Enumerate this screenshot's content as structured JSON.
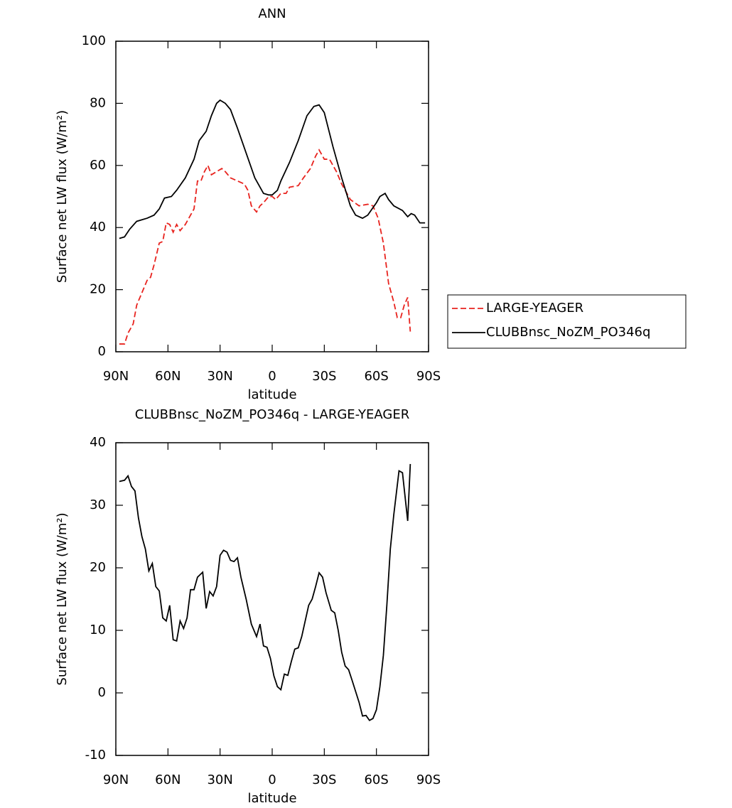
{
  "chart_data": [
    {
      "type": "line",
      "title": "ANN",
      "x_label": "latitude",
      "y_label": "Surface net LW flux (W/m²)",
      "xlim": [
        90,
        -90
      ],
      "xticks": [
        {
          "value": 90,
          "label": "90N"
        },
        {
          "value": 60,
          "label": "60N"
        },
        {
          "value": 30,
          "label": "30N"
        },
        0,
        {
          "value": -30,
          "label": "30S"
        },
        {
          "value": -60,
          "label": "60S"
        },
        {
          "value": -90,
          "label": "90S"
        }
      ],
      "ylim": [
        0,
        100
      ],
      "yticks": [
        0,
        20,
        40,
        60,
        80,
        100
      ],
      "legend": "right",
      "series": [
        {
          "name": "LARGE-YEAGER",
          "color": "#e8231e",
          "line_style": "dashed",
          "x": [
            88,
            85,
            83,
            80,
            78,
            75,
            72,
            70,
            68,
            65,
            63,
            61,
            59,
            57,
            55,
            53,
            50,
            47,
            45,
            43,
            41,
            39,
            37,
            35,
            32,
            29,
            27,
            24,
            20,
            16,
            14,
            12,
            9,
            7,
            5,
            2,
            0,
            -2,
            -5,
            -8,
            -10,
            -15,
            -18,
            -22,
            -25,
            -27,
            -30,
            -33,
            -37,
            -40,
            -45,
            -50,
            -55,
            -58,
            -61,
            -64,
            -67,
            -70,
            -72,
            -74,
            -76,
            -78,
            -79.5
          ],
          "values": [
            2.5,
            2.5,
            6,
            9,
            15,
            19,
            23,
            24,
            28,
            35,
            35.5,
            41.5,
            41,
            38.5,
            41,
            39,
            41,
            44,
            46,
            55,
            55,
            58,
            60,
            57,
            58,
            59,
            58,
            56,
            55,
            54,
            52,
            47,
            45,
            47,
            48,
            50,
            50,
            49,
            51,
            51,
            53,
            53.5,
            56,
            59,
            63,
            65,
            62,
            62,
            58,
            54,
            49,
            47,
            47.5,
            47,
            43,
            35,
            22,
            16,
            11,
            11,
            15,
            17.5,
            6.5
          ]
        },
        {
          "name": "CLUBBnsc_NoZM_PO346q",
          "color": "#000000",
          "line_style": "solid",
          "x": [
            88,
            85,
            82,
            78,
            75,
            72,
            68,
            65,
            62,
            58,
            55,
            50,
            45,
            42,
            38,
            35,
            32,
            30,
            27,
            24,
            20,
            15,
            10,
            5,
            2,
            0,
            -3,
            -5,
            -10,
            -15,
            -20,
            -24,
            -27,
            -30,
            -35,
            -40,
            -45,
            -48,
            -52,
            -55,
            -60,
            -62,
            -65,
            -67,
            -70,
            -75,
            -78,
            -80,
            -82,
            -85,
            -88
          ],
          "values": [
            36.5,
            37,
            39.5,
            42,
            42.5,
            43,
            44,
            46,
            49.5,
            50,
            52,
            56,
            62,
            68,
            71,
            76,
            80,
            81,
            80,
            78,
            72,
            64,
            56,
            51,
            50.5,
            50.5,
            52,
            55,
            61,
            68,
            76,
            79,
            79.5,
            77,
            66,
            56,
            47,
            44,
            43,
            44,
            48,
            50,
            51,
            49,
            47,
            45.5,
            43.5,
            44.5,
            44,
            41.5,
            41.5
          ]
        }
      ]
    },
    {
      "type": "line",
      "title": "CLUBBnsc_NoZM_PO346q - LARGE-YEAGER",
      "x_label": "latitude",
      "y_label": "Surface net LW flux (W/m²)",
      "xlim": [
        90,
        -90
      ],
      "xticks": [
        {
          "value": 90,
          "label": "90N"
        },
        {
          "value": 60,
          "label": "60N"
        },
        {
          "value": 30,
          "label": "30N"
        },
        0,
        {
          "value": -30,
          "label": "30S"
        },
        {
          "value": -60,
          "label": "60S"
        },
        {
          "value": -90,
          "label": "90S"
        }
      ],
      "ylim": [
        -10,
        40
      ],
      "yticks": [
        -10,
        0,
        10,
        20,
        30,
        40
      ],
      "series": [
        {
          "color": "#000000",
          "line_style": "solid",
          "x": [
            88,
            85,
            83,
            81,
            79,
            77,
            75,
            73,
            71,
            69,
            67,
            65,
            63,
            61,
            59,
            57,
            55,
            53,
            51,
            49,
            47,
            45,
            43,
            40,
            38,
            36,
            34,
            32,
            30,
            28,
            26,
            24,
            22,
            20,
            18,
            15,
            12,
            9,
            7,
            5,
            3,
            1,
            -1,
            -3,
            -5,
            -7,
            -9,
            -11,
            -13,
            -15,
            -17,
            -19,
            -21,
            -23,
            -25,
            -27,
            -29,
            -31,
            -34,
            -36,
            -38,
            -40,
            -42,
            -44,
            -46,
            -50,
            -52,
            -54,
            -56,
            -58,
            -60,
            -62,
            -64,
            -66,
            -68,
            -70,
            -73,
            -75,
            -78,
            -79.5
          ],
          "values": [
            33.8,
            34,
            34.7,
            33,
            32.3,
            28,
            25,
            23,
            19.5,
            20.7,
            17,
            16.3,
            12,
            11.5,
            14,
            8.5,
            8.3,
            11.5,
            10.3,
            12,
            16.5,
            16.5,
            18.5,
            19.3,
            13.5,
            16.2,
            15.5,
            17,
            22,
            22.8,
            22.5,
            21.2,
            21,
            21.6,
            18.5,
            15,
            11,
            9,
            11,
            7.5,
            7.3,
            5.5,
            2.7,
            1,
            0.5,
            3,
            2.8,
            5,
            7,
            7.2,
            9,
            11.5,
            14,
            15,
            17,
            19.2,
            18.5,
            16,
            13.2,
            12.8,
            10,
            6.5,
            4.3,
            3.7,
            2,
            -1.5,
            -3.7,
            -3.6,
            -4.4,
            -4.1,
            -2.7,
            1,
            6,
            14,
            23,
            28.5,
            35.5,
            35.2,
            27.5,
            36.6
          ]
        }
      ]
    }
  ]
}
